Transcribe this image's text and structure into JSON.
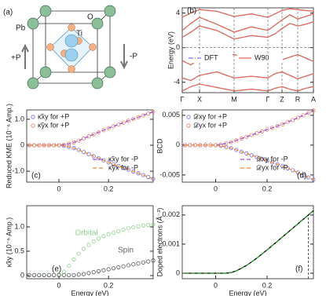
{
  "structure": {
    "panel": "(a)",
    "pb": "Pb",
    "o": "O",
    "ti": "Ti",
    "plus": "+P",
    "minus": "-P"
  },
  "chart_data": [
    {
      "type": "band",
      "panel": "(b)",
      "ylabel": "Energy (eV)",
      "x": [
        0,
        11,
        22,
        44,
        66,
        88,
        109,
        118,
        127,
        137,
        147,
        157,
        167
      ],
      "xlim": [
        0,
        167
      ],
      "xticks": [
        {
          "value": 0,
          "label": "Γ"
        },
        {
          "value": 22,
          "label": "X"
        },
        {
          "value": 66,
          "label": "M"
        },
        {
          "value": 109,
          "label": "Γ"
        },
        {
          "value": 127,
          "label": "Z"
        },
        {
          "value": 147,
          "label": "R"
        },
        {
          "value": 167,
          "label": "A"
        }
      ],
      "ylim": [
        -5.2,
        4.6
      ],
      "yticks": [
        -4,
        0,
        4
      ],
      "grid": true,
      "fermi_level": 0,
      "series": [
        {
          "name": "DFT",
          "color": "#8a6fe0",
          "marker": "dashdot",
          "bands": [
            [
              -5,
              -4.5,
              -4.2,
              -4.6,
              -5,
              -4.8,
              -5,
              -4.7,
              -4.5,
              -4.8,
              -5,
              -4.7,
              -4.5
            ],
            [
              -3.5,
              -3.8,
              -3.2,
              -2.8,
              -3.5,
              -3.3,
              -3.5,
              -3,
              -2.8,
              -3.2,
              -3.6,
              -3.3,
              -3
            ],
            [
              -1.5,
              -2,
              -1.2,
              -1,
              -0.8,
              -1.3,
              -1.5,
              -1.7,
              -1.4,
              -1.1,
              -0.8,
              -1.2,
              -1.6
            ],
            [
              1.2,
              1.8,
              2.5,
              2,
              1,
              1.4,
              1.2,
              1.6,
              2.2,
              2.8,
              2.5,
              2.7,
              3
            ],
            [
              2,
              2.8,
              3.5,
              2.7,
              1.8,
              2.4,
              2,
              2.6,
              3.2,
              3.8,
              3.3,
              3.6,
              3.9
            ],
            [
              3.5,
              4,
              4.4,
              4.2,
              3.6,
              3.9,
              3.5,
              3.9,
              4.3,
              4.5,
              4.4,
              4.3,
              4.2
            ]
          ]
        },
        {
          "name": "W90",
          "color": "#e0705a",
          "marker": "solid",
          "bands": [
            [
              -5,
              -4.5,
              -4.2,
              -4.6,
              -5,
              -4.8,
              -5,
              -4.7,
              -4.5,
              -4.8,
              -5,
              -4.7,
              -4.5
            ],
            [
              -3.5,
              -3.8,
              -3.2,
              -2.8,
              -3.5,
              -3.3,
              -3.5,
              -3,
              -2.8,
              -3.2,
              -3.6,
              -3.3,
              -3
            ],
            [
              -1.5,
              -2,
              -1.2,
              -1,
              -0.8,
              -1.3,
              -1.5,
              -1.7,
              -1.4,
              -1.1,
              -0.8,
              -1.2,
              -1.6
            ],
            [
              1.2,
              1.8,
              2.5,
              2,
              1,
              1.4,
              1.2,
              1.6,
              2.2,
              2.8,
              2.5,
              2.7,
              3
            ],
            [
              2,
              2.8,
              3.5,
              2.7,
              1.8,
              2.4,
              2,
              2.6,
              3.2,
              3.8,
              3.3,
              3.6,
              3.9
            ],
            [
              3.5,
              4,
              4.4,
              4.2,
              3.6,
              3.9,
              3.5,
              3.9,
              4.3,
              4.5,
              4.4,
              4.3,
              4.2
            ]
          ]
        }
      ]
    },
    {
      "type": "line",
      "panel": "(c)",
      "ylabel": "Reduced KME (10⁻⁶ Amp.)",
      "x": [
        -0.12,
        -0.1,
        -0.08,
        -0.06,
        -0.04,
        -0.02,
        0,
        0.02,
        0.04,
        0.06,
        0.08,
        0.1,
        0.12,
        0.14,
        0.16,
        0.18,
        0.2,
        0.22,
        0.24,
        0.26,
        0.28,
        0.3,
        0.32,
        0.34,
        0.36,
        0.38
      ],
      "xlim": [
        -0.13,
        0.38
      ],
      "xticks": [
        0,
        0.2
      ],
      "ylim": [
        -1.42,
        1.36
      ],
      "yticks": [
        {
          "value": -1,
          "label": "-1.0"
        },
        0,
        {
          "value": 1,
          "label": "1.0"
        }
      ],
      "series": [
        {
          "name": "κ̃xy for +P",
          "color": "#6f6fe0",
          "marker": "circle",
          "values": [
            0,
            0,
            0,
            0,
            0,
            0,
            0,
            -0.02,
            -0.06,
            -0.11,
            -0.18,
            -0.26,
            -0.34,
            -0.42,
            -0.5,
            -0.58,
            -0.66,
            -0.73,
            -0.8,
            -0.87,
            -0.94,
            -1.01,
            -1.08,
            -1.15,
            -1.22,
            -1.29
          ]
        },
        {
          "name": "κ̃yx for +P",
          "color": "#f08060",
          "marker": "circle",
          "values": [
            0,
            0,
            0,
            0,
            0,
            0,
            0,
            0.02,
            0.06,
            0.11,
            0.18,
            0.26,
            0.34,
            0.42,
            0.5,
            0.58,
            0.66,
            0.73,
            0.8,
            0.87,
            0.94,
            1.01,
            1.08,
            1.15,
            1.22,
            1.29
          ]
        },
        {
          "name": "κ̃xy for -P",
          "color": "#9a55d8",
          "marker": "dash",
          "values": [
            0,
            0,
            0,
            0,
            0,
            0,
            0,
            0.02,
            0.06,
            0.11,
            0.18,
            0.26,
            0.34,
            0.42,
            0.5,
            0.58,
            0.66,
            0.73,
            0.8,
            0.87,
            0.94,
            1.01,
            1.08,
            1.15,
            1.22,
            1.29
          ]
        },
        {
          "name": "κ̃yx for -P",
          "color": "#f58a30",
          "marker": "dash",
          "values": [
            0,
            0,
            0,
            0,
            0,
            0,
            0,
            -0.02,
            -0.06,
            -0.11,
            -0.18,
            -0.26,
            -0.34,
            -0.42,
            -0.5,
            -0.58,
            -0.66,
            -0.73,
            -0.8,
            -0.87,
            -0.94,
            -1.01,
            -1.08,
            -1.15,
            -1.22,
            -1.29
          ]
        }
      ]
    },
    {
      "type": "line",
      "panel": "(d)",
      "ylabel": "BCD",
      "x": [
        -0.12,
        -0.1,
        -0.08,
        -0.06,
        -0.04,
        -0.02,
        0,
        0.02,
        0.04,
        0.06,
        0.08,
        0.1,
        0.12,
        0.14,
        0.16,
        0.18,
        0.2,
        0.22,
        0.24,
        0.26,
        0.28,
        0.3,
        0.32,
        0.34,
        0.36,
        0.38
      ],
      "xlim": [
        -0.13,
        0.38
      ],
      "xticks": [
        0,
        0.2
      ],
      "ylim": [
        -0.0062,
        0.0059
      ],
      "yticks": [
        -0.005,
        0,
        0.005
      ],
      "series": [
        {
          "name": "𝒟xy for +P",
          "color": "#6f6fe0",
          "marker": "circle",
          "values": [
            0,
            0,
            0,
            0,
            0,
            0,
            0,
            -0.0001,
            -0.0003,
            -0.0005,
            -0.0008,
            -0.0011,
            -0.0014,
            -0.0017,
            -0.002,
            -0.0023,
            -0.0026,
            -0.0029,
            -0.0032,
            -0.0035,
            -0.0039,
            -0.0042,
            -0.0046,
            -0.005,
            -0.0054,
            -0.0058
          ]
        },
        {
          "name": "𝒟yx for +P",
          "color": "#f08060",
          "marker": "circle",
          "values": [
            0,
            0,
            0,
            0,
            0,
            0,
            0,
            0.0001,
            0.0003,
            0.0005,
            0.0008,
            0.0011,
            0.0014,
            0.0017,
            0.002,
            0.0023,
            0.0026,
            0.0029,
            0.0032,
            0.0035,
            0.0039,
            0.0042,
            0.0046,
            0.005,
            0.0054,
            0.0058
          ]
        },
        {
          "name": "𝒟xy for -P",
          "color": "#9a55d8",
          "marker": "dash",
          "values": [
            0,
            0,
            0,
            0,
            0,
            0,
            0,
            0.0001,
            0.0003,
            0.0005,
            0.0008,
            0.0011,
            0.0014,
            0.0017,
            0.002,
            0.0023,
            0.0026,
            0.0029,
            0.0032,
            0.0035,
            0.0039,
            0.0042,
            0.0046,
            0.005,
            0.0054,
            0.0058
          ]
        },
        {
          "name": "𝒟yx for -P",
          "color": "#f58a30",
          "marker": "dash",
          "values": [
            0,
            0,
            0,
            0,
            0,
            0,
            0,
            -0.0001,
            -0.0003,
            -0.0005,
            -0.0008,
            -0.0011,
            -0.0014,
            -0.0017,
            -0.002,
            -0.0023,
            -0.0026,
            -0.0029,
            -0.0032,
            -0.0035,
            -0.0039,
            -0.0042,
            -0.0046,
            -0.005,
            -0.0054,
            -0.0058
          ]
        }
      ]
    },
    {
      "type": "line",
      "panel": "(e)",
      "ylabel": "κ̃xy (10⁻⁶ Amp.)",
      "xlabel": "Energy (eV)",
      "x": [
        -0.12,
        -0.1,
        -0.08,
        -0.06,
        -0.04,
        -0.02,
        0,
        0.02,
        0.04,
        0.06,
        0.08,
        0.1,
        0.12,
        0.14,
        0.16,
        0.18,
        0.2,
        0.22,
        0.24,
        0.26,
        0.28,
        0.3,
        0.32,
        0.34,
        0.36,
        0.38
      ],
      "xlim": [
        -0.13,
        0.38
      ],
      "xticks": [
        0,
        0.2
      ],
      "ylim": [
        -0.065,
        1.435
      ],
      "yticks": [
        0,
        0.5,
        {
          "value": 1,
          "label": "1.0"
        }
      ],
      "annotations": [
        {
          "text": "Orbital",
          "color": "#8fd08f"
        },
        {
          "text": "Spin",
          "color": "#666666"
        }
      ],
      "series": [
        {
          "color": "#8fd08f",
          "marker": "circle",
          "values": [
            0.01,
            0.01,
            0.01,
            0.01,
            0.01,
            0.01,
            0.02,
            0.08,
            0.2,
            0.33,
            0.45,
            0.55,
            0.63,
            0.7,
            0.76,
            0.81,
            0.85,
            0.88,
            0.91,
            0.94,
            0.97,
            0.99,
            1.01,
            1.03,
            1.04,
            1.05
          ]
        },
        {
          "color": "#555555",
          "marker": "circle",
          "values": [
            0.01,
            0.01,
            0.01,
            0.01,
            0.01,
            0.01,
            0.01,
            0.01,
            0.01,
            0.01,
            0.02,
            0.03,
            0.05,
            0.07,
            0.09,
            0.11,
            0.13,
            0.15,
            0.17,
            0.19,
            0.21,
            0.23,
            0.25,
            0.27,
            0.29,
            0.31
          ]
        }
      ]
    },
    {
      "type": "line",
      "panel": "(f)",
      "ylabel": "Doped electrons (Å⁻³)",
      "xlabel": "Energy (eV)",
      "x": [
        -0.12,
        -0.1,
        -0.08,
        -0.06,
        -0.04,
        -0.02,
        0,
        0.02,
        0.04,
        0.06,
        0.08,
        0.1,
        0.12,
        0.14,
        0.16,
        0.18,
        0.2,
        0.22,
        0.24,
        0.26,
        0.28,
        0.3,
        0.32,
        0.34,
        0.36,
        0.38
      ],
      "xlim": [
        -0.13,
        0.38
      ],
      "xticks": [
        0,
        0.2
      ],
      "ylim": [
        -0.00019,
        0.00232
      ],
      "yticks": [
        0,
        0.001,
        0.002
      ],
      "vline": 0.36,
      "series": [
        {
          "color": "#000000",
          "marker": "solid",
          "values": [
            0,
            0,
            0,
            0,
            0,
            0,
            0,
            0,
            0,
            2e-05,
            8e-05,
            0.00017,
            0.00027,
            0.00039,
            0.00052,
            0.00066,
            0.0008,
            0.00095,
            0.0011,
            0.00125,
            0.0014,
            0.00155,
            0.0017,
            0.00185,
            0.002,
            0.00215
          ]
        },
        {
          "color": "#2ca02c",
          "marker": "dash",
          "values": [
            0,
            0,
            0,
            0,
            0,
            0,
            0,
            0,
            0,
            2e-05,
            8e-05,
            0.00017,
            0.00027,
            0.00039,
            0.00052,
            0.00066,
            0.0008,
            0.00095,
            0.0011,
            0.00125,
            0.0014,
            0.00155,
            0.0017,
            0.00185,
            0.002,
            0.00215
          ]
        }
      ]
    }
  ]
}
